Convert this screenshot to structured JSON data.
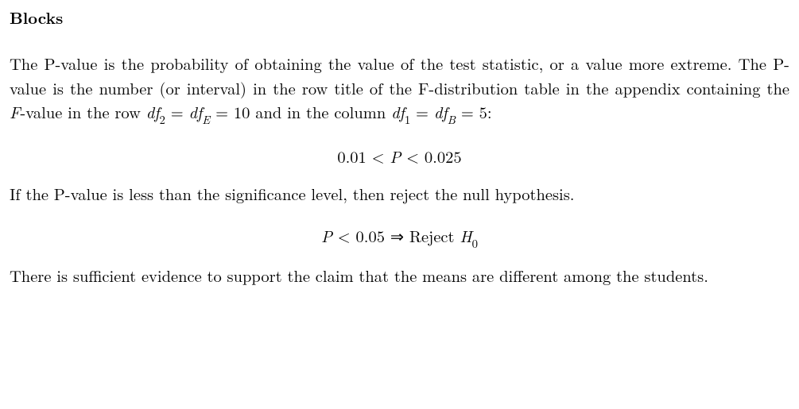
{
  "heading": "Blocks",
  "para1_part1": "The P-value is the probability of obtaining the value of the test statistic, or a value more extreme.  The P-value is the number (or interval) in the row title of the F-distribution table in the appendix containing the ",
  "para1_Fvalue": "F",
  "para1_part2": "-value in the row ",
  "df2_var": "df",
  "df2_sub": "2",
  "eq": " = ",
  "dfE_var": "df",
  "dfE_sub": "E",
  "eq2": " = 10 and in the column ",
  "df1_var": "df",
  "df1_sub": "1",
  "eq3": " = ",
  "dfB_var": "df",
  "dfB_sub": "B",
  "eq4": " = 5:",
  "math1_left": "0.01 < ",
  "math1_P": "P",
  "math1_right": " < 0.025",
  "para2": "If the P-value is less than the significance level, then reject the null hypothesis.",
  "math2_P": "P",
  "math2_lt": " < 0.05 ",
  "math2_arrow": "⇒",
  "math2_reject": "  Reject ",
  "math2_H": "H",
  "math2_H0": "0",
  "para3": "There is sufficient evidence to support the claim that the means are different among the students."
}
